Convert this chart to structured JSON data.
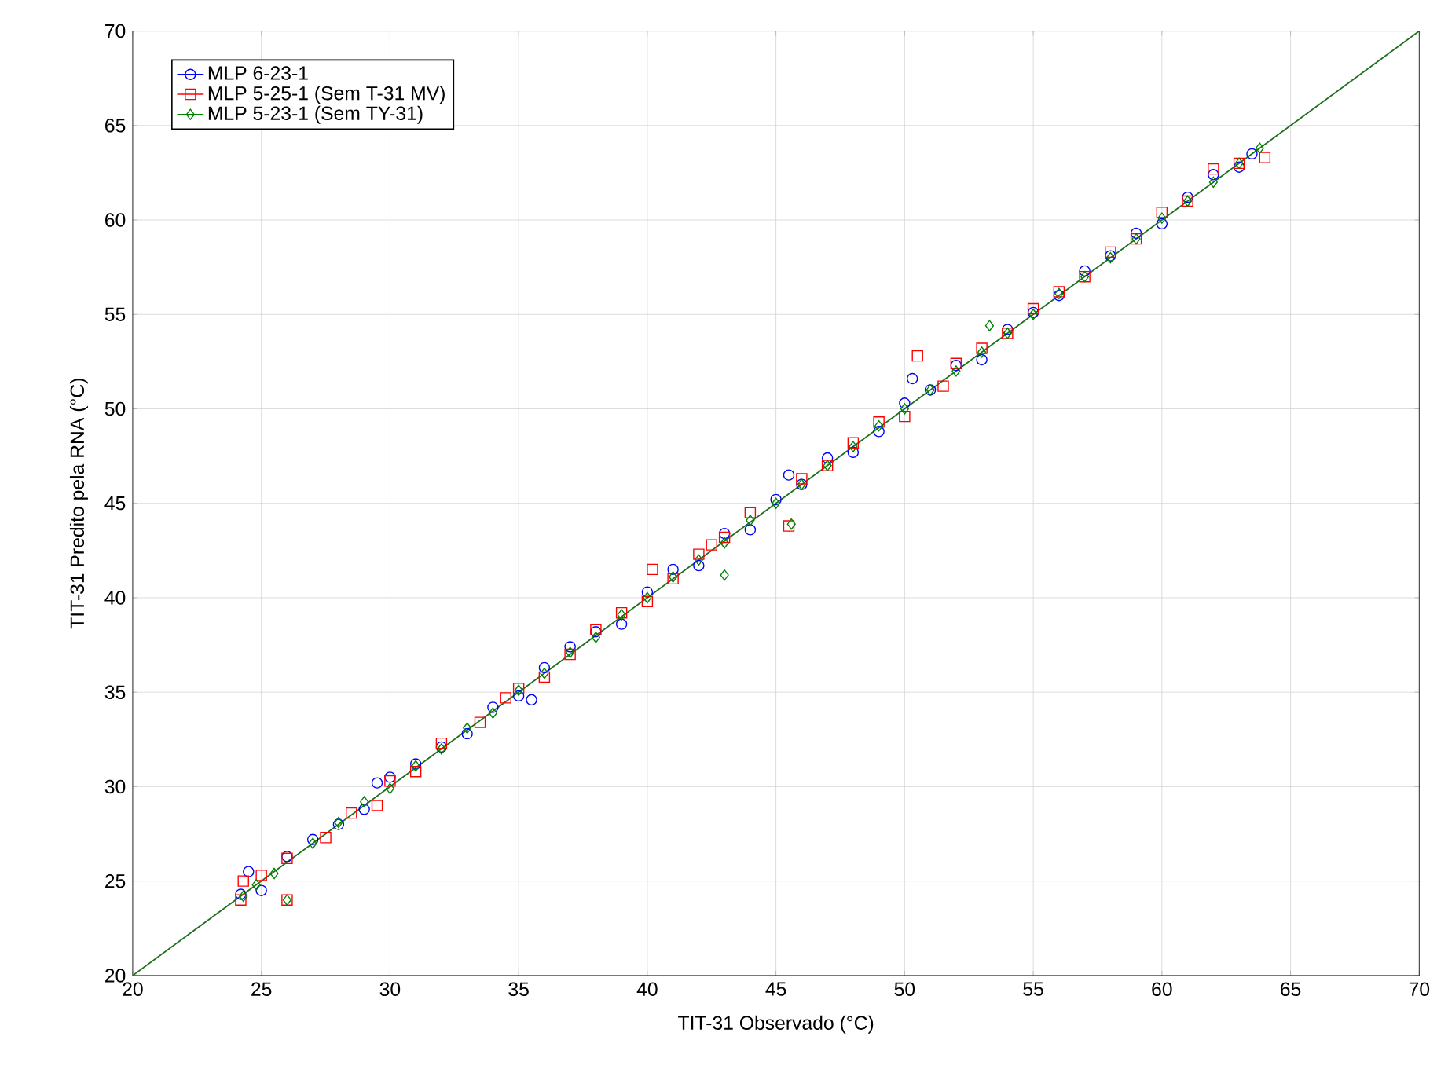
{
  "chart_data": {
    "type": "scatter",
    "xlabel": "TIT-31 Observado (°C)",
    "ylabel": "TIT-31 Predito pela RNA (°C)",
    "xlim": [
      20,
      70
    ],
    "ylim": [
      20,
      70
    ],
    "xticks": [
      20,
      25,
      30,
      35,
      40,
      45,
      50,
      55,
      60,
      65,
      70
    ],
    "yticks": [
      20,
      25,
      30,
      35,
      40,
      45,
      50,
      55,
      60,
      65,
      70
    ],
    "grid": true,
    "legend": "top left",
    "series": [
      {
        "name": "MLP 6-23-1",
        "color": "#0000ff",
        "marker": "circle",
        "x": [
          24.2,
          24.5,
          25,
          26,
          27,
          28,
          29,
          29.5,
          30,
          31,
          32,
          33,
          34,
          35,
          35.5,
          36,
          37,
          38,
          39,
          40,
          41,
          42,
          43,
          44,
          45,
          45.5,
          46,
          47,
          48,
          49,
          50,
          50.3,
          51,
          52,
          53,
          54,
          55,
          56,
          57,
          58,
          59,
          60,
          61,
          62,
          63,
          63.5
        ],
        "values": [
          24.3,
          25.5,
          24.5,
          26.3,
          27.2,
          28,
          28.8,
          30.2,
          30.5,
          31.2,
          32.1,
          32.8,
          34.2,
          34.8,
          34.6,
          36.3,
          37.4,
          38.2,
          38.6,
          40.3,
          41.5,
          41.7,
          43.4,
          43.6,
          45.2,
          46.5,
          46,
          47.4,
          47.7,
          48.8,
          50.3,
          51.6,
          51,
          52.3,
          52.6,
          54.2,
          55.1,
          56,
          57.3,
          58.1,
          59.3,
          59.8,
          61.2,
          62.4,
          62.8,
          63.5
        ]
      },
      {
        "name": "MLP 5-25-1 (Sem T-31 MV)",
        "color": "#ff0000",
        "marker": "square",
        "x": [
          24.2,
          24.3,
          25,
          26,
          26,
          27.5,
          28.5,
          29.5,
          30,
          31,
          32,
          33.5,
          34.5,
          35,
          36,
          37,
          38,
          39,
          40,
          40.2,
          41,
          42,
          42.5,
          43,
          44,
          45.5,
          46,
          47,
          48,
          49,
          50,
          50.5,
          51.5,
          52,
          53,
          54,
          55,
          56,
          57,
          58,
          59,
          60,
          61,
          62,
          63,
          64
        ],
        "values": [
          24,
          25,
          25.3,
          24,
          26.2,
          27.3,
          28.6,
          29,
          30.3,
          30.8,
          32.3,
          33.4,
          34.7,
          35.2,
          35.8,
          37,
          38.3,
          39.2,
          39.8,
          41.5,
          41,
          42.3,
          42.8,
          43.2,
          44.5,
          43.8,
          46.3,
          47,
          48.2,
          49.3,
          49.6,
          52.8,
          51.2,
          52.4,
          53.2,
          54,
          55.3,
          56.2,
          57,
          58.3,
          59,
          60.4,
          61,
          62.7,
          63,
          63.3
        ]
      },
      {
        "name": "MLP 5-23-1 (Sem TY-31)",
        "color": "#008000",
        "marker": "diamond",
        "x": [
          24.3,
          24.8,
          25.5,
          26,
          27,
          28,
          29,
          30,
          31,
          32,
          33,
          34,
          35,
          36,
          37,
          38,
          39,
          40,
          41,
          42,
          43,
          43,
          44,
          45,
          45.6,
          46,
          47,
          48,
          49,
          50,
          51,
          52,
          53,
          53.3,
          54,
          55,
          56,
          57,
          58,
          59,
          60,
          61,
          62,
          63,
          63.8
        ],
        "values": [
          24.2,
          24.8,
          25.4,
          24,
          27,
          28.1,
          29.2,
          29.9,
          31.1,
          32,
          33.1,
          33.9,
          35.1,
          36,
          37.1,
          37.9,
          39.1,
          40,
          41.1,
          42,
          42.9,
          41.2,
          44.1,
          45,
          43.9,
          46,
          47,
          48,
          49.1,
          50,
          51,
          52,
          53,
          54.4,
          54,
          55,
          56.1,
          57,
          58,
          59,
          60.1,
          61,
          62,
          63,
          63.8
        ]
      },
      {
        "type": "line",
        "color": "#1e6e1e",
        "x": [
          20,
          70
        ],
        "values": [
          20,
          70
        ]
      }
    ]
  }
}
